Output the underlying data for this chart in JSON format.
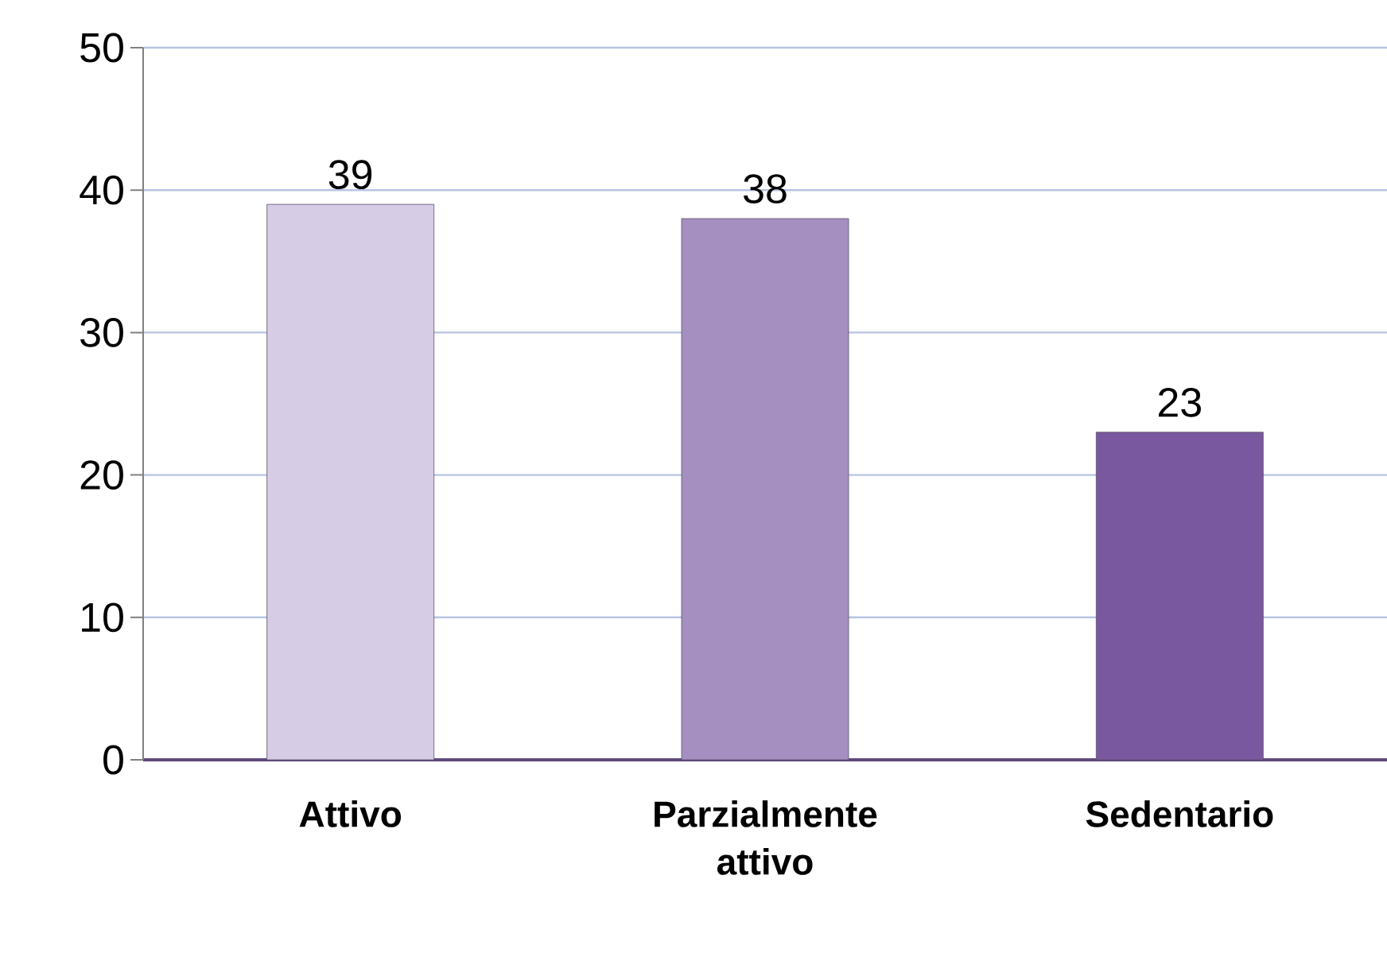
{
  "chart_data": {
    "type": "bar",
    "categories": [
      "Attivo",
      "Parzialmente attivo",
      "Sedentario"
    ],
    "values": [
      39,
      38,
      23
    ],
    "colors": [
      "#d6cce6",
      "#a48fc0",
      "#7a58a0"
    ],
    "ylim": [
      0,
      50
    ],
    "yticks": [
      0,
      10,
      20,
      30,
      40,
      50
    ],
    "grid": "y",
    "data_labels": true
  }
}
